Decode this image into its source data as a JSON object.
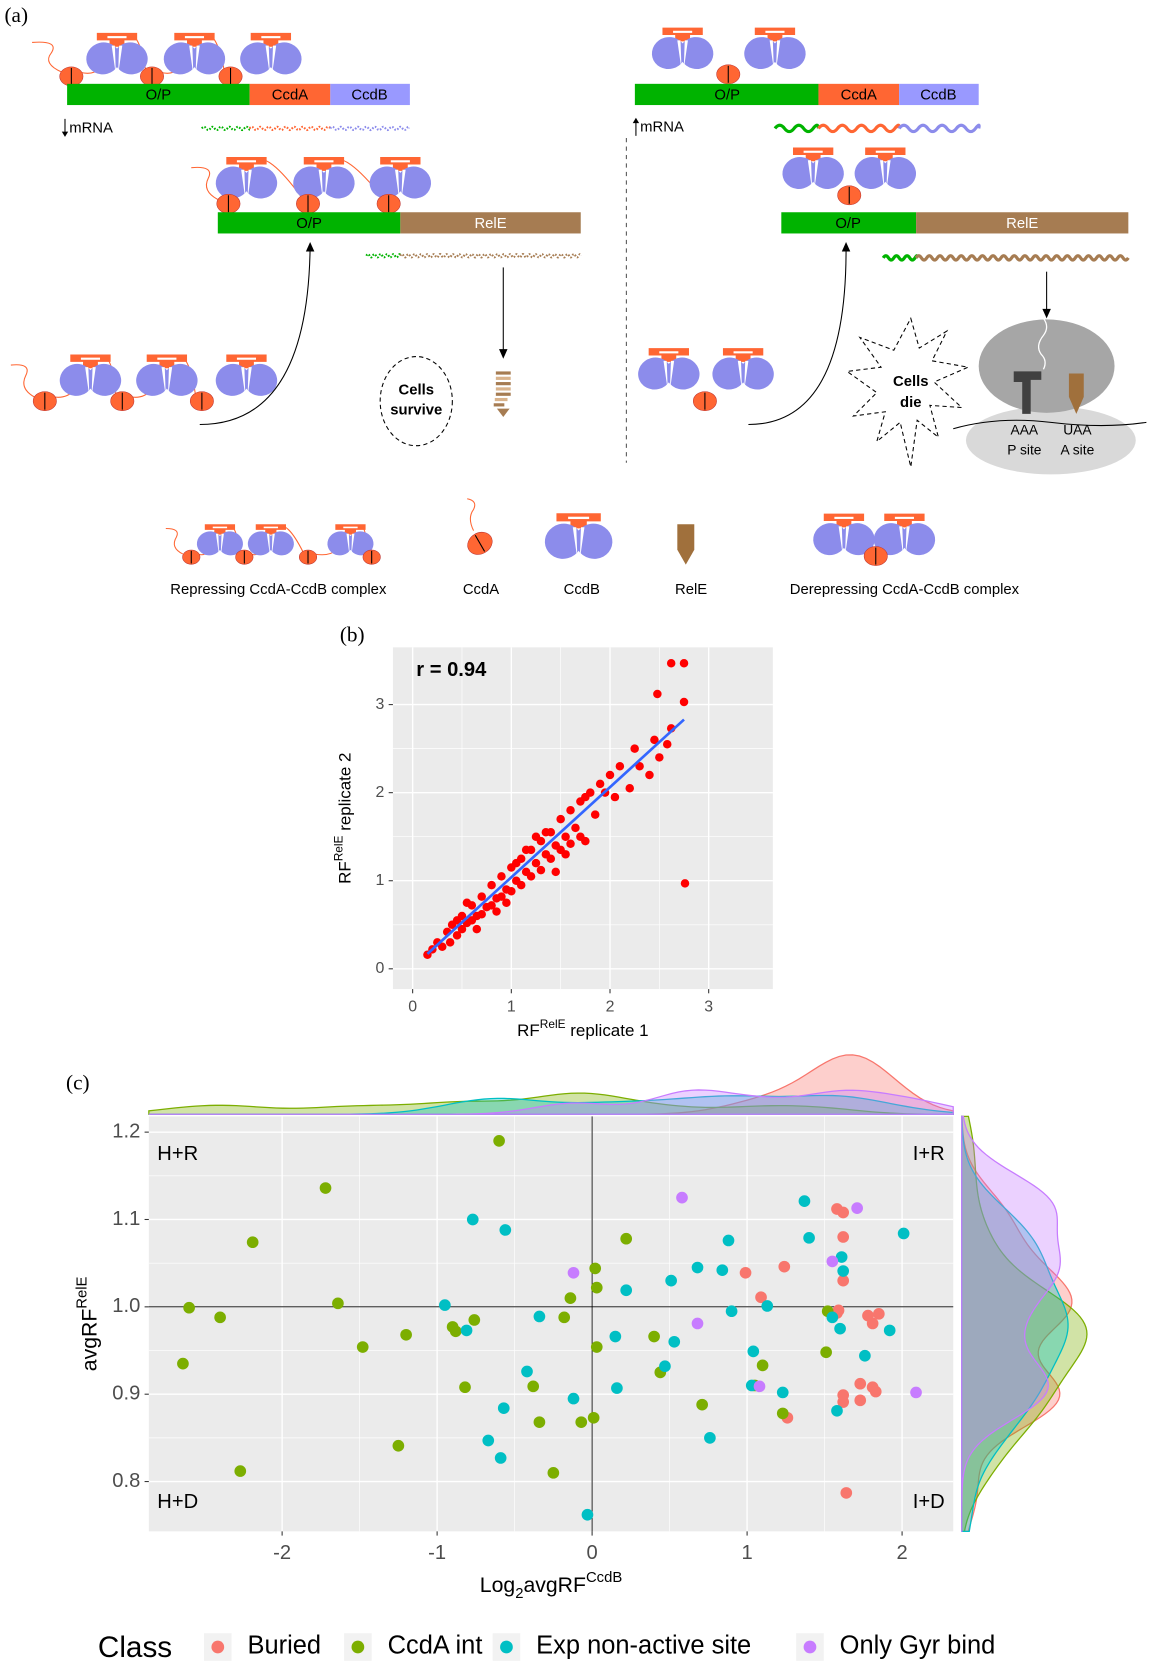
{
  "panel_a": {
    "label": "(a)",
    "left": {
      "top_gene": [
        "O/P",
        "CcdA",
        "CcdB"
      ],
      "top_mrna": "mRNA",
      "mid_gene": [
        "O/P",
        "RelE"
      ],
      "outcome": [
        "Cells",
        "survive"
      ]
    },
    "right": {
      "top_gene": [
        "O/P",
        "CcdA",
        "CcdB"
      ],
      "top_mrna": "mRNA",
      "mid_gene": [
        "O/P",
        "RelE"
      ],
      "outcome": [
        "Cells",
        "die"
      ],
      "ribosome": {
        "p_codon": "AAA",
        "a_codon": "UAA",
        "p_site": "P site",
        "a_site": "A site"
      }
    },
    "legend": [
      "Repressing CcdA-CcdB complex",
      "CcdA",
      "CcdB",
      "RelE",
      "Derepressing CcdA-CcdB complex"
    ]
  },
  "chart_data": [
    {
      "type": "scatter",
      "label": "(b)",
      "annotation": "r = 0.94",
      "xlabel": [
        "RF",
        "RelE",
        " replicate 1"
      ],
      "ylabel": [
        "RF",
        "RelE",
        " replicate 2"
      ],
      "color": "#ff0000",
      "x": [
        0.15,
        0.2,
        0.25,
        0.3,
        0.35,
        0.38,
        0.4,
        0.45,
        0.5,
        0.5,
        0.55,
        0.6,
        0.6,
        0.65,
        0.7,
        0.7,
        0.75,
        0.8,
        0.8,
        0.85,
        0.9,
        0.9,
        0.95,
        1.0,
        1.0,
        1.05,
        1.1,
        1.1,
        1.15,
        1.2,
        1.2,
        1.25,
        1.3,
        1.3,
        1.35,
        1.4,
        1.4,
        1.45,
        1.5,
        1.5,
        1.55,
        1.6,
        1.6,
        1.65,
        1.7,
        1.7,
        1.75,
        1.8,
        1.85,
        1.9,
        1.95,
        2.0,
        2.05,
        2.1,
        2.2,
        2.3,
        2.25,
        2.4,
        2.45,
        2.5,
        2.58,
        2.62,
        2.48,
        2.75,
        2.62,
        2.75,
        2.76,
        0.55,
        0.65,
        1.25,
        1.45,
        0.85,
        1.05,
        1.35,
        1.55,
        1.75,
        0.45,
        0.95,
        1.15
      ],
      "y": [
        0.16,
        0.22,
        0.3,
        0.25,
        0.42,
        0.3,
        0.5,
        0.38,
        0.6,
        0.45,
        0.52,
        0.72,
        0.55,
        0.6,
        0.82,
        0.62,
        0.7,
        0.95,
        0.72,
        0.8,
        1.05,
        0.82,
        0.9,
        1.15,
        0.88,
        1.0,
        1.25,
        0.95,
        1.1,
        1.35,
        1.05,
        1.2,
        1.45,
        1.12,
        1.3,
        1.55,
        1.25,
        1.4,
        1.7,
        1.35,
        1.5,
        1.8,
        1.42,
        1.6,
        1.9,
        1.5,
        1.45,
        2.0,
        1.75,
        2.1,
        2.0,
        2.2,
        1.95,
        2.3,
        2.05,
        2.3,
        2.5,
        2.2,
        2.6,
        2.4,
        2.55,
        2.73,
        3.12,
        3.03,
        3.47,
        3.47,
        0.97,
        0.75,
        0.45,
        1.5,
        1.1,
        0.65,
        1.2,
        1.55,
        1.3,
        1.95,
        0.55,
        0.75,
        1.35
      ],
      "fit": {
        "color": "#3366ff",
        "x": [
          0.15,
          2.75
        ],
        "y": [
          0.17,
          2.83
        ]
      },
      "xlim": [
        -0.2,
        3.65
      ],
      "ylim": [
        -0.23,
        3.65
      ],
      "xticks": [
        0,
        1,
        2,
        3
      ],
      "yticks": [
        0,
        1,
        2,
        3
      ],
      "grid": true
    },
    {
      "type": "scatter",
      "label": "(c)",
      "xlabel": [
        "Log",
        "2",
        "avgRF",
        "CcdB"
      ],
      "ylabel": [
        "avgRF",
        "RelE"
      ],
      "quadrant_labels": [
        "H+R",
        "I+R",
        "H+D",
        "I+D"
      ],
      "reference_lines": {
        "x": 0,
        "y": 1
      },
      "legend_title": "Class",
      "marginal_density": true,
      "series": [
        {
          "name": "Buried",
          "color": "#F8766D",
          "x": [
            0.99,
            1.09,
            1.24,
            1.58,
            1.62,
            1.62,
            1.62,
            1.58,
            1.59,
            1.62,
            1.62,
            1.26,
            1.64,
            1.73,
            1.78,
            1.81,
            1.85,
            1.81,
            1.83,
            1.73
          ],
          "y": [
            1.039,
            1.011,
            1.046,
            1.112,
            1.108,
            1.08,
            1.03,
            0.993,
            0.996,
            0.899,
            0.891,
            0.873,
            0.787,
            0.912,
            0.99,
            0.981,
            0.992,
            0.908,
            0.903,
            0.893
          ]
        },
        {
          "name": "CcdA int",
          "color": "#7CAE00",
          "x": [
            -0.6,
            -1.72,
            -2.19,
            -1.64,
            -2.6,
            -2.4,
            -2.64,
            -1.48,
            -1.2,
            -1.25,
            -2.27,
            -0.9,
            -0.88,
            -0.76,
            -0.82,
            -0.38,
            -0.34,
            -0.25,
            -0.18,
            -0.14,
            0.02,
            0.03,
            0.03,
            0.01,
            -0.07,
            0.22,
            0.4,
            0.44,
            0.71,
            1.1,
            1.05,
            1.23,
            1.51,
            1.52
          ],
          "y": [
            1.19,
            1.136,
            1.074,
            1.004,
            0.999,
            0.988,
            0.935,
            0.954,
            0.968,
            0.841,
            0.812,
            0.977,
            0.972,
            0.985,
            0.908,
            0.909,
            0.868,
            0.81,
            0.988,
            1.01,
            1.044,
            1.022,
            0.954,
            0.873,
            0.868,
            1.078,
            0.966,
            0.925,
            0.888,
            0.933,
            0.91,
            0.878,
            0.948,
            0.995
          ]
        },
        {
          "name": "Exp non-active site",
          "color": "#00BFC4",
          "x": [
            -0.77,
            -0.56,
            -0.95,
            -0.81,
            -0.42,
            -0.57,
            -0.67,
            -0.59,
            -0.34,
            -0.12,
            0.15,
            0.16,
            0.22,
            -0.03,
            0.47,
            0.51,
            0.53,
            0.68,
            0.84,
            0.88,
            0.9,
            0.76,
            1.04,
            1.03,
            1.13,
            1.23,
            1.37,
            1.4,
            1.55,
            1.61,
            1.62,
            1.6,
            1.58,
            1.76,
            1.92,
            2.01
          ],
          "y": [
            1.1,
            1.088,
            1.002,
            0.973,
            0.926,
            0.884,
            0.847,
            0.827,
            0.989,
            0.895,
            0.966,
            0.907,
            1.019,
            0.762,
            0.932,
            1.03,
            0.96,
            1.045,
            1.042,
            1.076,
            0.995,
            0.85,
            0.949,
            0.91,
            1.001,
            0.902,
            1.121,
            1.079,
            0.988,
            1.057,
            1.041,
            0.975,
            0.881,
            0.944,
            0.973,
            1.084
          ]
        },
        {
          "name": "Only Gyr bind",
          "color": "#C77CFF",
          "x": [
            0.58,
            -0.12,
            0.68,
            1.71,
            1.55,
            1.08,
            2.09
          ],
          "y": [
            1.125,
            1.039,
            0.981,
            1.113,
            1.052,
            0.909,
            0.902
          ]
        }
      ],
      "xlim": [
        -2.86,
        2.33
      ],
      "ylim": [
        0.743,
        1.218
      ],
      "xticks": [
        -2,
        -1,
        0,
        1,
        2
      ],
      "yticks": [
        0.8,
        0.9,
        {
          "value": 1,
          "label": "1.0"
        },
        1.1,
        1.2
      ],
      "grid": true
    }
  ]
}
